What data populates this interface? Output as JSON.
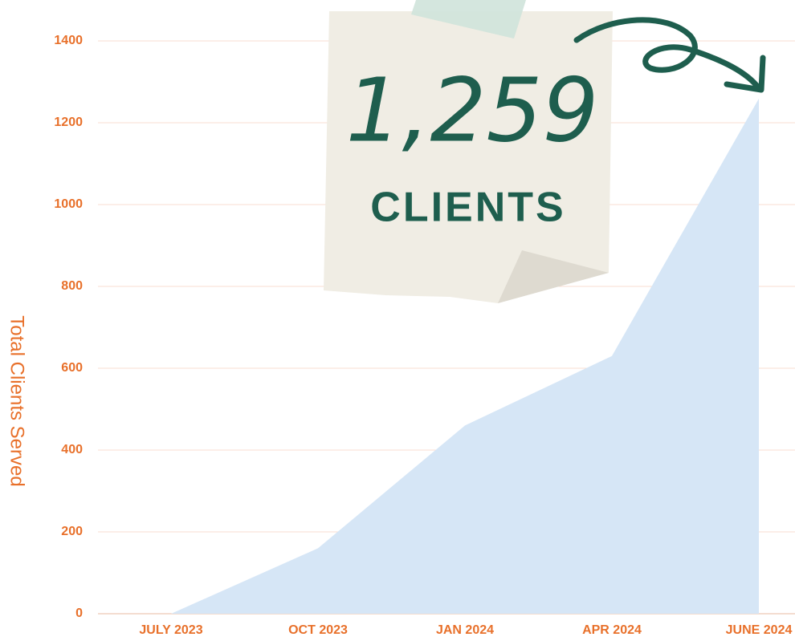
{
  "chart_data": {
    "type": "area",
    "y_label": "Total Clients Served",
    "categories": [
      "JULY 2023",
      "OCT 2023",
      "JAN 2024",
      "APR 2024",
      "JUNE 2024"
    ],
    "values": [
      0,
      160,
      460,
      630,
      1259
    ],
    "color": "#d6e6f6",
    "ylim": [
      0,
      1400
    ],
    "yticks": [
      0,
      200,
      400,
      600,
      800,
      1000,
      1200,
      1400
    ],
    "grid": true,
    "annotation": {
      "number": "1,259",
      "unit": "CLIENTS"
    }
  }
}
